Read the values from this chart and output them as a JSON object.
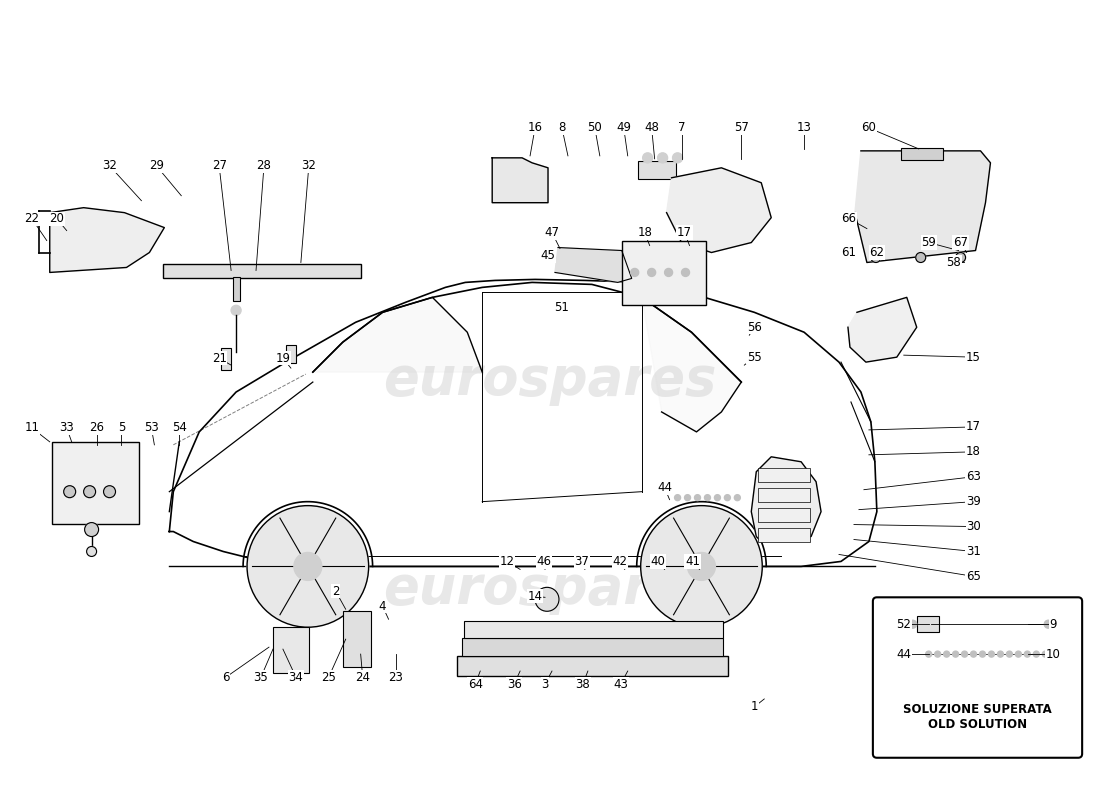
{
  "background_color": "#ffffff",
  "line_color": "#000000",
  "watermark_text": "eurospares",
  "watermark_color": "#cccccc",
  "parts_with_lines": [
    [
      "32",
      108,
      165,
      140,
      200
    ],
    [
      "29",
      155,
      165,
      180,
      195
    ],
    [
      "27",
      218,
      165,
      230,
      270
    ],
    [
      "28",
      263,
      165,
      255,
      270
    ],
    [
      "32",
      308,
      165,
      300,
      262
    ],
    [
      "20",
      55,
      218,
      65,
      230
    ],
    [
      "22",
      30,
      218,
      45,
      240
    ],
    [
      "11",
      30,
      428,
      48,
      442
    ],
    [
      "33",
      65,
      428,
      70,
      442
    ],
    [
      "26",
      95,
      428,
      95,
      445
    ],
    [
      "5",
      120,
      428,
      120,
      445
    ],
    [
      "53",
      150,
      428,
      153,
      445
    ],
    [
      "54",
      178,
      428,
      178,
      445
    ],
    [
      "21",
      218,
      358,
      230,
      365
    ],
    [
      "19",
      282,
      358,
      290,
      368
    ],
    [
      "6",
      225,
      678,
      268,
      648
    ],
    [
      "35",
      260,
      678,
      272,
      650
    ],
    [
      "34",
      295,
      678,
      282,
      650
    ],
    [
      "25",
      328,
      678,
      345,
      640
    ],
    [
      "24",
      362,
      678,
      360,
      655
    ],
    [
      "23",
      395,
      678,
      395,
      655
    ],
    [
      "2",
      335,
      592,
      345,
      610
    ],
    [
      "4",
      382,
      607,
      388,
      620
    ],
    [
      "12",
      507,
      562,
      520,
      570
    ],
    [
      "46",
      544,
      562,
      545,
      570
    ],
    [
      "37",
      582,
      562,
      585,
      570
    ],
    [
      "42",
      620,
      562,
      625,
      570
    ],
    [
      "14",
      535,
      597,
      545,
      598
    ],
    [
      "64",
      475,
      685,
      480,
      672
    ],
    [
      "36",
      514,
      685,
      520,
      672
    ],
    [
      "3",
      545,
      685,
      552,
      672
    ],
    [
      "38",
      583,
      685,
      588,
      672
    ],
    [
      "43",
      621,
      685,
      628,
      672
    ],
    [
      "40",
      658,
      562,
      665,
      570
    ],
    [
      "41",
      693,
      562,
      700,
      570
    ],
    [
      "44",
      665,
      488,
      670,
      500
    ],
    [
      "1",
      755,
      708,
      765,
      700
    ],
    [
      "16",
      535,
      127,
      530,
      155
    ],
    [
      "8",
      562,
      127,
      568,
      155
    ],
    [
      "50",
      595,
      127,
      600,
      155
    ],
    [
      "49",
      624,
      127,
      628,
      155
    ],
    [
      "48",
      652,
      127,
      655,
      158
    ],
    [
      "7",
      682,
      127,
      682,
      158
    ],
    [
      "57",
      742,
      127,
      742,
      158
    ],
    [
      "13",
      805,
      127,
      805,
      148
    ],
    [
      "47",
      552,
      232,
      560,
      248
    ],
    [
      "18",
      645,
      232,
      650,
      245
    ],
    [
      "17",
      685,
      232,
      690,
      245
    ],
    [
      "45",
      548,
      255,
      555,
      258
    ],
    [
      "51",
      562,
      307,
      568,
      310
    ],
    [
      "56",
      755,
      327,
      750,
      335
    ],
    [
      "55",
      755,
      357,
      745,
      365
    ],
    [
      "15",
      975,
      357,
      905,
      355
    ],
    [
      "17",
      975,
      427,
      870,
      430
    ],
    [
      "18",
      975,
      452,
      870,
      455
    ],
    [
      "63",
      975,
      477,
      865,
      490
    ],
    [
      "39",
      975,
      502,
      860,
      510
    ],
    [
      "30",
      975,
      527,
      855,
      525
    ],
    [
      "31",
      975,
      552,
      855,
      540
    ],
    [
      "65",
      975,
      577,
      840,
      555
    ],
    [
      "60",
      870,
      127,
      920,
      148
    ],
    [
      "66",
      850,
      218,
      868,
      228
    ],
    [
      "59",
      930,
      242,
      960,
      250
    ],
    [
      "67",
      962,
      242,
      968,
      252
    ],
    [
      "58",
      955,
      262,
      965,
      262
    ],
    [
      "61",
      850,
      252,
      856,
      255
    ],
    [
      "62",
      878,
      252,
      884,
      258
    ]
  ],
  "box_parts": [
    [
      "52",
      905,
      625,
      930,
      625
    ],
    [
      "9",
      1055,
      625,
      1030,
      625
    ],
    [
      "44",
      905,
      655,
      930,
      655
    ],
    [
      "10",
      1055,
      655,
      1030,
      655
    ]
  ]
}
